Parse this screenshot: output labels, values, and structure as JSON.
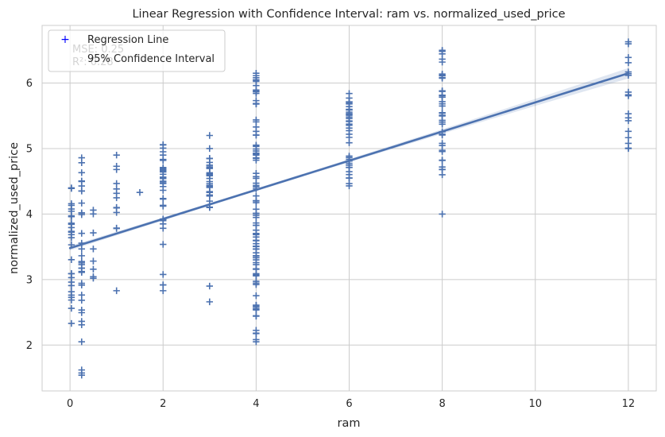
{
  "chart_data": {
    "type": "scatter",
    "title": "Linear Regression with Confidence Interval: ram vs. normalized_used_price",
    "xlabel": "ram",
    "ylabel": "normalized_used_price",
    "xlim": [
      -0.6,
      12.6
    ],
    "ylim": [
      1.3,
      6.88
    ],
    "xticks": [
      0,
      2,
      4,
      6,
      8,
      10,
      12
    ],
    "yticks": [
      2,
      3,
      4,
      5,
      6
    ],
    "grid": true,
    "legend_position": "top-left",
    "legend": [
      {
        "label": "Regression Line",
        "marker": "+",
        "color": "#0000ff"
      },
      {
        "label": "95% Confidence Interval",
        "marker": "none",
        "color": ""
      }
    ],
    "stats_text": [
      "MSE: 0.25",
      "R²: 0.28"
    ],
    "colors": {
      "points": "#4c72b0",
      "line": "#4c72b0",
      "band": "#4c72b0",
      "grid": "#cccccc",
      "legend_marker": "#0000ff"
    },
    "regression": {
      "intercept": 3.48,
      "slope": 0.2225,
      "ci_halfwidth_min": 0.02,
      "ci_halfwidth_max": 0.08
    },
    "scatter_groups": [
      {
        "x": 0.03,
        "ymin": 2.33,
        "ymax": 4.4,
        "n": 28
      },
      {
        "x": 0.25,
        "ymin": 2.05,
        "ymax": 4.86,
        "n": 32
      },
      {
        "x": 0.25,
        "ymin": 1.54,
        "ymax": 1.62,
        "n": 3
      },
      {
        "x": 0.5,
        "ymin": 3.02,
        "ymax": 4.06,
        "n": 8
      },
      {
        "x": 1.0,
        "ymin": 3.78,
        "ymax": 4.9,
        "n": 12
      },
      {
        "x": 1.0,
        "ymin": 2.83,
        "ymax": 2.83,
        "n": 1
      },
      {
        "x": 1.5,
        "ymin": 4.33,
        "ymax": 4.33,
        "n": 1
      },
      {
        "x": 2.0,
        "ymin": 3.9,
        "ymax": 5.06,
        "n": 30
      },
      {
        "x": 2.0,
        "ymin": 2.83,
        "ymax": 3.85,
        "n": 7
      },
      {
        "x": 3.0,
        "ymin": 4.1,
        "ymax": 4.85,
        "n": 30
      },
      {
        "x": 3.0,
        "ymin": 5.0,
        "ymax": 5.2,
        "n": 2
      },
      {
        "x": 3.0,
        "ymin": 2.66,
        "ymax": 2.9,
        "n": 2
      },
      {
        "x": 4.0,
        "ymin": 2.05,
        "ymax": 6.15,
        "n": 95
      },
      {
        "x": 6.0,
        "ymin": 4.43,
        "ymax": 5.84,
        "n": 40
      },
      {
        "x": 8.0,
        "ymin": 4.6,
        "ymax": 6.5,
        "n": 40
      },
      {
        "x": 8.0,
        "ymin": 4.0,
        "ymax": 4.0,
        "n": 1
      },
      {
        "x": 12.0,
        "ymin": 5.0,
        "ymax": 6.63,
        "n": 18
      }
    ]
  }
}
